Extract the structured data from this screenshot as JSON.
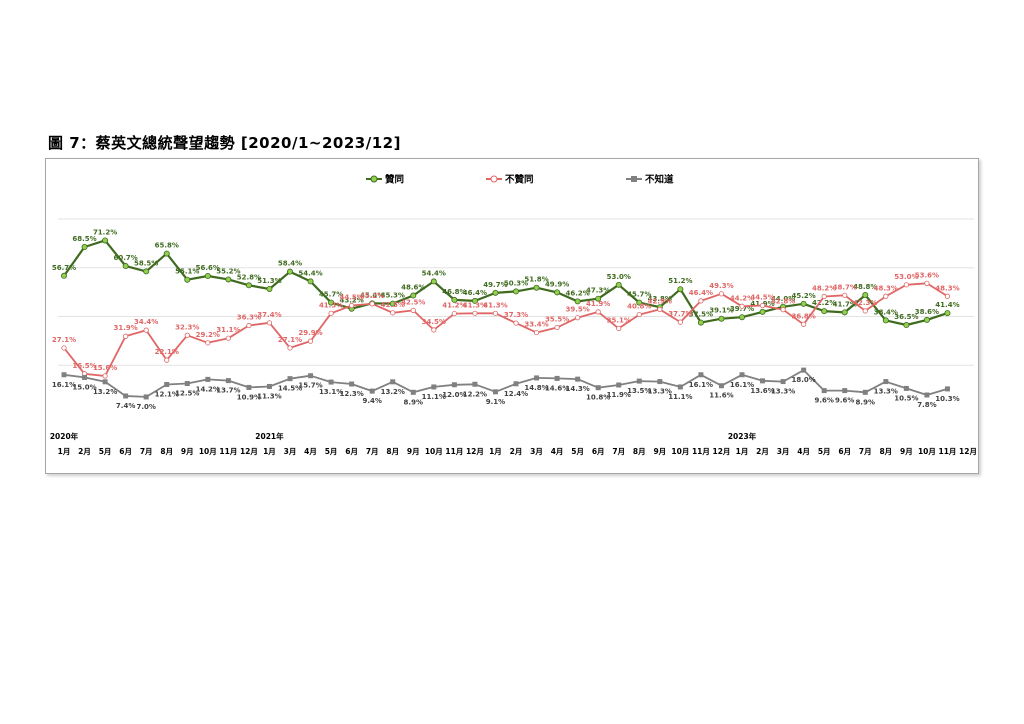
{
  "figure_title": "圖 7：蔡英文總統聲望趨勢  [2020/1~2023/12]",
  "chart_data": {
    "type": "line",
    "title": "",
    "xlabel": "",
    "ylabel": "",
    "ylim": [
      0,
      80
    ],
    "grid": "horizontal",
    "legend_position": "top-center",
    "categories": [
      "1月",
      "2月",
      "5月",
      "6月",
      "7月",
      "8月",
      "9月",
      "10月",
      "11月",
      "12月",
      "1月",
      "3月",
      "4月",
      "5月",
      "6月",
      "7月",
      "8月",
      "9月",
      "10月",
      "11月",
      "12月",
      "1月",
      "2月",
      "3月",
      "4月",
      "5月",
      "6月",
      "7月",
      "8月",
      "9月",
      "10月",
      "11月",
      "12月",
      "1月",
      "2月",
      "3月",
      "4月",
      "5月",
      "6月",
      "7月",
      "8月",
      "9月",
      "10月",
      "11月",
      "12月"
    ],
    "year_labels": [
      {
        "index": 0,
        "text": "2020年"
      },
      {
        "index": 10,
        "text": "2021年"
      },
      {
        "index": 33,
        "text": "2023年"
      }
    ],
    "series": [
      {
        "name": "贊同",
        "color": "#3f6b1f",
        "marker_color": "#92d050",
        "values": [
          56.7,
          68.5,
          71.2,
          60.7,
          58.5,
          65.8,
          55.1,
          56.6,
          55.2,
          52.8,
          51.3,
          58.4,
          54.4,
          45.7,
          43.2,
          45.4,
          45.3,
          48.6,
          54.4,
          46.8,
          46.4,
          49.7,
          50.3,
          51.8,
          49.9,
          46.2,
          47.3,
          53.0,
          45.7,
          43.8,
          51.2,
          37.5,
          39.1,
          39.7,
          41.9,
          44.0,
          45.2,
          42.2,
          41.7,
          48.8,
          38.4,
          36.5,
          38.6,
          41.4,
          null
        ]
      },
      {
        "name": "不贊同",
        "color": "#e06666",
        "marker_color": "#ffffff",
        "values": [
          27.1,
          16.5,
          15.6,
          31.9,
          34.4,
          22.1,
          32.3,
          29.2,
          31.1,
          36.3,
          37.4,
          27.1,
          29.9,
          41.3,
          44.5,
          45.2,
          41.5,
          42.5,
          34.5,
          41.2,
          41.3,
          41.3,
          37.3,
          33.4,
          35.5,
          39.5,
          41.9,
          35.1,
          40.8,
          42.9,
          37.7,
          46.4,
          49.3,
          44.2,
          44.5,
          42.8,
          36.8,
          48.2,
          48.7,
          42.3,
          48.3,
          53.0,
          53.6,
          48.3,
          null
        ]
      },
      {
        "name": "不知道",
        "color": "#808080",
        "marker_color": "#808080",
        "values": [
          16.1,
          15.0,
          13.2,
          7.4,
          7.0,
          12.1,
          12.5,
          14.2,
          13.7,
          10.9,
          11.3,
          14.5,
          15.7,
          13.1,
          12.3,
          9.4,
          13.2,
          8.9,
          11.1,
          12.0,
          12.2,
          9.1,
          12.4,
          14.8,
          14.6,
          14.3,
          10.8,
          11.9,
          13.5,
          13.3,
          11.1,
          16.1,
          11.6,
          16.1,
          13.6,
          13.3,
          18.0,
          9.6,
          9.6,
          8.9,
          13.3,
          10.5,
          7.8,
          10.3,
          null
        ]
      }
    ]
  }
}
